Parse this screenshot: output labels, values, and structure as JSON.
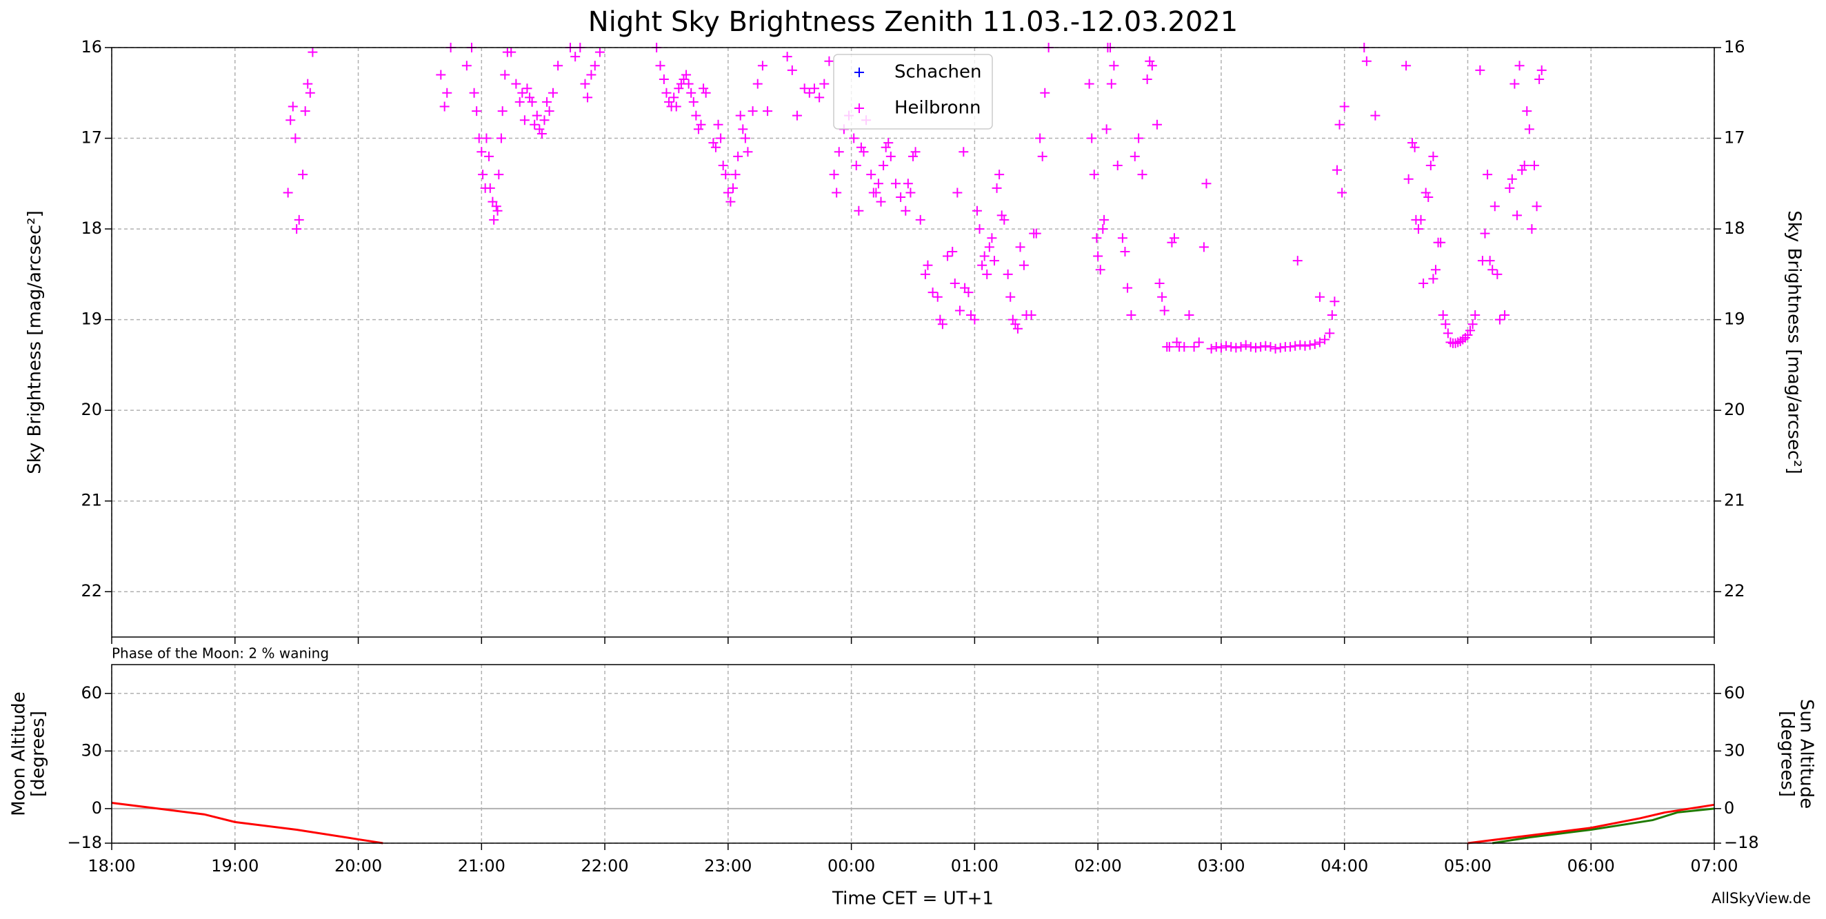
{
  "chart_data": [
    {
      "type": "scatter",
      "title": "Night Sky Brightness Zenith 11.03.-12.03.2021",
      "ylabel": "Sky Brightness [mag/arcsec²]",
      "mirror_y": true,
      "xlim": [
        18,
        31
      ],
      "xticks": [
        18,
        19,
        20,
        21,
        22,
        23,
        24,
        25,
        26,
        27,
        28,
        29,
        30,
        31
      ],
      "ylim": [
        22.5,
        16
      ],
      "yticks": [
        16,
        17,
        18,
        19,
        20,
        21,
        22
      ],
      "grid": true,
      "legend": "upper center",
      "series": [
        {
          "name": "Schachen",
          "color": "#0000ff",
          "x": [],
          "values": []
        },
        {
          "name": "Heilbronn",
          "color": "#ff00ff",
          "x": [
            19.43,
            19.45,
            19.47,
            19.49,
            19.5,
            19.52,
            19.55,
            19.57,
            19.59,
            19.61,
            19.63,
            20.67,
            20.7,
            20.72,
            20.75,
            20.88,
            20.92,
            20.94,
            20.96,
            20.98,
            21.0,
            21.01,
            21.03,
            21.04,
            21.06,
            21.07,
            21.09,
            21.1,
            21.12,
            21.13,
            21.14,
            21.16,
            21.17,
            21.19,
            21.21,
            21.24,
            21.28,
            21.31,
            21.33,
            21.35,
            21.37,
            21.39,
            21.41,
            21.43,
            21.45,
            21.47,
            21.49,
            21.51,
            21.53,
            21.55,
            21.58,
            21.62,
            21.72,
            21.76,
            21.8,
            21.84,
            21.86,
            21.89,
            21.92,
            21.96,
            22.42,
            22.45,
            22.48,
            22.5,
            22.52,
            22.54,
            22.56,
            22.58,
            22.6,
            22.62,
            22.64,
            22.66,
            22.68,
            22.7,
            22.72,
            22.74,
            22.76,
            22.78,
            22.8,
            22.82,
            22.88,
            22.9,
            22.92,
            22.94,
            22.96,
            22.98,
            23.0,
            23.02,
            23.04,
            23.06,
            23.08,
            23.1,
            23.12,
            23.14,
            23.16,
            23.2,
            23.24,
            23.28,
            23.32,
            23.48,
            23.52,
            23.56,
            23.62,
            23.66,
            23.7,
            23.74,
            23.78,
            23.82,
            23.86,
            23.88,
            23.9,
            23.94,
            23.98,
            24.02,
            24.04,
            24.06,
            24.08,
            24.1,
            24.12,
            24.16,
            24.18,
            24.2,
            24.22,
            24.24,
            24.26,
            24.28,
            24.3,
            24.32,
            24.36,
            24.4,
            24.44,
            24.46,
            24.48,
            24.5,
            24.52,
            24.56,
            24.6,
            24.62,
            24.66,
            24.7,
            24.72,
            24.74,
            24.78,
            24.82,
            24.84,
            24.86,
            24.88,
            24.92,
            24.95,
            24.97,
            25.0,
            24.91,
            25.02,
            25.04,
            25.06,
            25.08,
            25.1,
            25.12,
            25.14,
            25.16,
            25.18,
            25.2,
            25.22,
            25.24,
            25.27,
            25.29,
            25.31,
            25.33,
            25.35,
            25.37,
            25.4,
            25.42,
            25.46,
            25.48,
            25.5,
            25.53,
            25.55,
            25.57,
            25.6,
            25.93,
            25.95,
            25.97,
            25.99,
            26.0,
            26.02,
            26.04,
            26.05,
            26.07,
            26.08,
            26.1,
            26.11,
            26.13,
            26.16,
            26.2,
            26.22,
            26.24,
            26.27,
            26.3,
            26.33,
            26.36,
            26.4,
            26.42,
            26.44,
            26.48,
            26.5,
            26.52,
            26.54,
            26.56,
            26.58,
            26.6,
            26.62,
            26.64,
            26.66,
            26.7,
            26.74,
            26.78,
            26.82,
            26.86,
            26.88,
            26.92,
            26.96,
            27.0,
            27.04,
            27.08,
            27.12,
            27.16,
            27.2,
            27.24,
            27.28,
            27.32,
            27.36,
            27.4,
            27.44,
            27.48,
            27.52,
            27.56,
            27.6,
            27.64,
            27.68,
            27.72,
            27.76,
            27.8,
            27.84,
            27.88,
            27.62,
            27.8,
            27.9,
            27.92,
            27.94,
            27.96,
            27.98,
            28.0,
            28.16,
            28.18,
            28.25,
            28.5,
            28.52,
            28.55,
            28.57,
            28.58,
            28.6,
            28.62,
            28.64,
            28.66,
            28.68,
            28.7,
            28.72,
            28.72,
            28.74,
            28.76,
            28.78,
            28.8,
            28.82,
            28.84,
            28.86,
            28.88,
            28.9,
            28.92,
            28.94,
            28.96,
            28.98,
            29.0,
            29.02,
            29.04,
            29.06,
            29.1,
            29.12,
            29.14,
            29.16,
            29.18,
            29.2,
            29.22,
            29.24,
            29.26,
            29.3,
            29.34,
            29.36,
            29.38,
            29.4,
            29.42,
            29.44,
            29.46,
            29.48,
            29.5,
            29.52,
            29.54,
            29.56,
            29.58,
            29.6
          ],
          "values": [
            17.6,
            16.8,
            16.65,
            17.0,
            18.0,
            17.9,
            17.4,
            16.7,
            16.4,
            16.5,
            16.05,
            16.3,
            16.65,
            16.5,
            16.0,
            16.2,
            16.0,
            16.5,
            16.7,
            17.0,
            17.15,
            17.4,
            17.55,
            17.0,
            17.2,
            17.55,
            17.7,
            17.9,
            17.75,
            17.8,
            17.4,
            17.0,
            16.7,
            16.3,
            16.05,
            16.05,
            16.4,
            16.6,
            16.5,
            16.8,
            16.45,
            16.55,
            16.6,
            16.85,
            16.75,
            16.9,
            16.95,
            16.8,
            16.6,
            16.7,
            16.5,
            16.2,
            16.0,
            16.1,
            16.0,
            16.4,
            16.55,
            16.3,
            16.2,
            16.05,
            16.0,
            16.2,
            16.35,
            16.5,
            16.6,
            16.65,
            16.55,
            16.65,
            16.45,
            16.4,
            16.35,
            16.3,
            16.4,
            16.5,
            16.6,
            16.75,
            16.9,
            16.85,
            16.45,
            16.5,
            17.05,
            17.1,
            16.85,
            17.0,
            17.3,
            17.4,
            17.6,
            17.7,
            17.55,
            17.4,
            17.2,
            16.75,
            16.9,
            17.0,
            17.15,
            16.7,
            16.4,
            16.2,
            16.7,
            16.1,
            16.25,
            16.75,
            16.45,
            16.5,
            16.45,
            16.55,
            16.4,
            16.15,
            17.4,
            17.6,
            17.15,
            16.9,
            16.75,
            17.0,
            17.3,
            17.8,
            17.1,
            17.15,
            16.8,
            17.4,
            17.6,
            17.6,
            17.5,
            17.7,
            17.3,
            17.1,
            17.05,
            17.2,
            17.5,
            17.65,
            17.8,
            17.5,
            17.6,
            17.2,
            17.15,
            17.9,
            18.5,
            18.4,
            18.7,
            18.75,
            19.0,
            19.05,
            18.3,
            18.25,
            18.6,
            17.6,
            18.9,
            18.65,
            18.7,
            18.95,
            19.0,
            17.15,
            17.8,
            18.0,
            18.4,
            18.3,
            18.5,
            18.2,
            18.1,
            18.35,
            17.55,
            17.4,
            17.85,
            17.9,
            18.5,
            18.75,
            19.0,
            19.05,
            19.1,
            18.2,
            18.4,
            18.95,
            18.95,
            18.05,
            18.05,
            17.0,
            17.2,
            16.5,
            16.0,
            16.4,
            17.0,
            17.4,
            18.1,
            18.3,
            18.45,
            18.0,
            17.9,
            16.9,
            16.0,
            16.0,
            16.4,
            16.2,
            17.3,
            18.1,
            18.25,
            18.65,
            18.95,
            17.2,
            17.0,
            17.4,
            16.35,
            16.15,
            16.2,
            16.85,
            18.6,
            18.75,
            18.9,
            19.3,
            19.3,
            18.15,
            18.1,
            19.25,
            19.3,
            19.3,
            18.95,
            19.3,
            19.25,
            18.2,
            17.5,
            19.32,
            19.3,
            19.31,
            19.29,
            19.3,
            19.31,
            19.3,
            19.28,
            19.3,
            19.31,
            19.3,
            19.29,
            19.3,
            19.32,
            19.31,
            19.3,
            19.3,
            19.29,
            19.28,
            19.29,
            19.28,
            19.27,
            19.25,
            19.22,
            19.15,
            18.35,
            18.75,
            18.95,
            18.8,
            17.35,
            16.85,
            17.6,
            16.65,
            16.0,
            16.15,
            16.75,
            16.2,
            17.45,
            17.05,
            17.1,
            17.9,
            18.0,
            17.9,
            18.6,
            17.6,
            17.65,
            17.3,
            17.2,
            18.55,
            18.45,
            18.15,
            18.15,
            18.95,
            19.05,
            19.15,
            19.25,
            19.26,
            19.26,
            19.25,
            19.24,
            19.22,
            19.2,
            19.17,
            19.12,
            19.05,
            18.95,
            16.25,
            18.35,
            18.05,
            17.4,
            18.35,
            18.45,
            17.75,
            18.5,
            19.0,
            18.95,
            17.55,
            17.45,
            16.4,
            17.85,
            16.2,
            17.35,
            17.3,
            16.7,
            16.9,
            18.0,
            17.3,
            17.75,
            16.35,
            16.25
          ]
        }
      ]
    },
    {
      "type": "line",
      "annotation": "Phase of the Moon: 2 % waning",
      "xlabel": "Time CET = UT+1",
      "source": "AllSkyView.de",
      "ylabel": [
        "Moon Altitude",
        "[degrees]"
      ],
      "y2label": [
        "Sun Altitude",
        "[degrees]"
      ],
      "axis_colors": true,
      "xlim": [
        18,
        31
      ],
      "xticks": [
        {
          "value": 18,
          "label": "18:00"
        },
        {
          "value": 19,
          "label": "19:00"
        },
        {
          "value": 20,
          "label": "20:00"
        },
        {
          "value": 21,
          "label": "21:00"
        },
        {
          "value": 22,
          "label": "22:00"
        },
        {
          "value": 23,
          "label": "23:00"
        },
        {
          "value": 24,
          "label": "00:00"
        },
        {
          "value": 25,
          "label": "01:00"
        },
        {
          "value": 26,
          "label": "02:00"
        },
        {
          "value": 27,
          "label": "03:00"
        },
        {
          "value": 28,
          "label": "04:00"
        },
        {
          "value": 29,
          "label": "05:00"
        },
        {
          "value": 30,
          "label": "06:00"
        },
        {
          "value": 31,
          "label": "07:00"
        }
      ],
      "ylim": [
        -18,
        75
      ],
      "yticks": [
        {
          "value": -18,
          "label": "−18"
        },
        0,
        30,
        60
      ],
      "y2lim": [
        -18,
        75
      ],
      "y2ticks": [
        {
          "value": -18,
          "label": "−18"
        },
        0,
        30,
        60
      ],
      "hline": 0,
      "grid": true,
      "series": [
        {
          "name": "Moon",
          "color": "#1f7a00",
          "axis": "y",
          "x": [
            29.2,
            29.5,
            30.0,
            30.5,
            30.7,
            31.0
          ],
          "values": [
            -18,
            -15,
            -11,
            -6,
            -2,
            0
          ]
        },
        {
          "name": "Sun",
          "color": "#ff0000",
          "axis": "y2",
          "x": [
            18,
            18.5,
            18.75,
            19,
            19.5,
            20,
            20.2,
            25,
            29,
            29.5,
            30,
            30.4,
            30.6,
            31
          ],
          "values": [
            3,
            -1,
            -3,
            -7,
            -11,
            -16,
            -18,
            null,
            -18,
            -14,
            -10,
            -5,
            -2,
            2
          ]
        }
      ]
    }
  ]
}
